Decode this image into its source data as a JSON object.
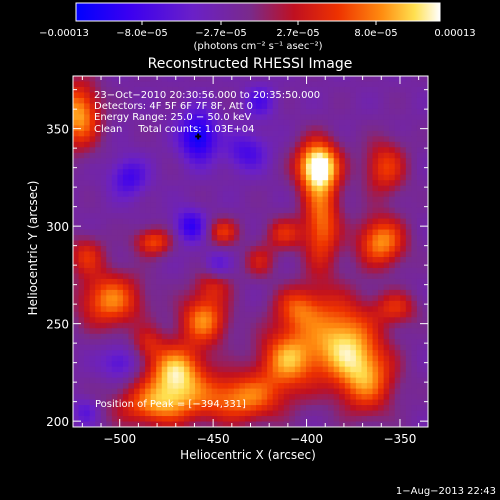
{
  "chart_data": {
    "type": "heatmap",
    "title": "Reconstructed RHESSI Image",
    "xlabel": "Heliocentric X (arcsec)",
    "ylabel": "Heliocentric Y (arcsec)",
    "xlim": [
      -525,
      -335
    ],
    "ylim": [
      197,
      377
    ],
    "x_ticks": [
      -500,
      -450,
      -400,
      -350
    ],
    "y_ticks": [
      200,
      250,
      300,
      350
    ],
    "x_tick_labels": [
      "−500",
      "−450",
      "−400",
      "−350"
    ],
    "y_tick_labels": [
      "200",
      "250",
      "300",
      "350"
    ],
    "colorbar": {
      "min": -0.00013,
      "max": 0.00013,
      "tick_labels": [
        "−0.00013",
        "−8.0e−05",
        "−2.7e−05",
        "2.7e−05",
        "8.0e−05",
        "0.00013"
      ],
      "units": "(photons cm⁻² s⁻¹ asec⁻²)"
    },
    "annotations": [
      "23−Oct−2010 20:30:56.000 to 20:35:50.000",
      "Detectors: 4F 5F 6F 7F 8F, Att 0",
      "Energy Range: 25.0 − 50.0 keV",
      "Clean     Total counts: 1.03E+04"
    ],
    "peak_label": "Position of Peak = [−394,331]",
    "peak": [
      -394,
      331
    ],
    "marker": [
      -458,
      346
    ],
    "sources": [
      {
        "x": -470,
        "y": 225,
        "sx": 11,
        "sy": 10,
        "a": 1.0
      },
      {
        "x": -455,
        "y": 252,
        "sx": 9,
        "sy": 9,
        "a": 0.8
      },
      {
        "x": -480,
        "y": 208,
        "sx": 16,
        "sy": 8,
        "a": 0.75
      },
      {
        "x": -435,
        "y": 212,
        "sx": 16,
        "sy": 9,
        "a": 0.8
      },
      {
        "x": -410,
        "y": 232,
        "sx": 11,
        "sy": 11,
        "a": 0.85
      },
      {
        "x": -382,
        "y": 242,
        "sx": 13,
        "sy": 15,
        "a": 0.9
      },
      {
        "x": -405,
        "y": 258,
        "sx": 9,
        "sy": 8,
        "a": 0.6
      },
      {
        "x": -368,
        "y": 222,
        "sx": 11,
        "sy": 13,
        "a": 0.75
      },
      {
        "x": -392,
        "y": 302,
        "sx": 7,
        "sy": 18,
        "a": 0.75
      },
      {
        "x": -394,
        "y": 331,
        "sx": 8,
        "sy": 9,
        "a": 1.2
      },
      {
        "x": -360,
        "y": 292,
        "sx": 9,
        "sy": 9,
        "a": 0.85
      },
      {
        "x": -358,
        "y": 330,
        "sx": 8,
        "sy": 10,
        "a": 0.6
      },
      {
        "x": -412,
        "y": 296,
        "sx": 7,
        "sy": 6,
        "a": 0.5
      },
      {
        "x": -425,
        "y": 282,
        "sx": 6,
        "sy": 6,
        "a": 0.4
      },
      {
        "x": -505,
        "y": 262,
        "sx": 12,
        "sy": 10,
        "a": 0.8
      },
      {
        "x": -518,
        "y": 285,
        "sx": 7,
        "sy": 7,
        "a": 0.5
      },
      {
        "x": -522,
        "y": 357,
        "sx": 8,
        "sy": 12,
        "a": 0.9
      },
      {
        "x": -482,
        "y": 292,
        "sx": 7,
        "sy": 5,
        "a": 0.65
      },
      {
        "x": -445,
        "y": 297,
        "sx": 6,
        "sy": 5,
        "a": 0.55
      },
      {
        "x": -450,
        "y": 270,
        "sx": 7,
        "sy": 6,
        "a": 0.4
      },
      {
        "x": -485,
        "y": 240,
        "sx": 6,
        "sy": 6,
        "a": 0.35
      },
      {
        "x": -352,
        "y": 258,
        "sx": 8,
        "sy": 6,
        "a": 0.5
      },
      {
        "x": -458,
        "y": 346,
        "sx": 7,
        "sy": 9,
        "a": -0.8
      },
      {
        "x": -462,
        "y": 300,
        "sx": 6,
        "sy": 6,
        "a": -0.6
      },
      {
        "x": -495,
        "y": 325,
        "sx": 7,
        "sy": 7,
        "a": -0.5
      },
      {
        "x": -432,
        "y": 338,
        "sx": 8,
        "sy": 7,
        "a": -0.45
      },
      {
        "x": -425,
        "y": 364,
        "sx": 6,
        "sy": 6,
        "a": -0.4
      },
      {
        "x": -500,
        "y": 230,
        "sx": 7,
        "sy": 6,
        "a": -0.4
      },
      {
        "x": -448,
        "y": 280,
        "sx": 5,
        "sy": 5,
        "a": -0.35
      },
      {
        "x": -518,
        "y": 205,
        "sx": 5,
        "sy": 5,
        "a": -0.35
      }
    ]
  },
  "footer": {
    "timestamp": "1−Aug−2013 22:43"
  }
}
